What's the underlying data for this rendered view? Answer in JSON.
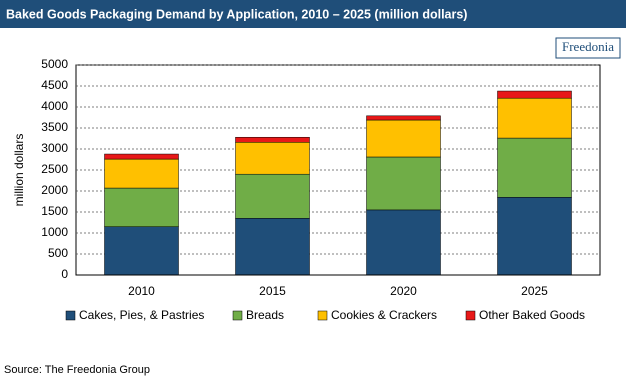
{
  "chart_data": {
    "type": "stacked_bar",
    "title": "Baked Goods Packaging Demand by Application, 2010 – 2025 (million dollars)",
    "logo": "Freedonia",
    "y_label": "million dollars",
    "categories": [
      "2010",
      "2015",
      "2020",
      "2025"
    ],
    "series": [
      {
        "name": "Cakes, Pies, & Pastries",
        "color": "#1f4e79",
        "values": [
          1150,
          1350,
          1550,
          1850
        ]
      },
      {
        "name": "Breads",
        "color": "#70ad47",
        "values": [
          920,
          1050,
          1260,
          1410
        ]
      },
      {
        "name": "Cookies & Crackers",
        "color": "#ffc000",
        "values": [
          690,
          760,
          880,
          950
        ]
      },
      {
        "name": "Other Baked Goods",
        "color": "#e81818",
        "values": [
          120,
          120,
          100,
          170
        ]
      }
    ],
    "ylim": [
      0,
      5000
    ],
    "yticks": [
      0,
      500,
      1000,
      1500,
      2000,
      2500,
      3000,
      3500,
      4000,
      4500,
      5000
    ],
    "grid": true,
    "source": "Source: The Freedonia Group"
  }
}
